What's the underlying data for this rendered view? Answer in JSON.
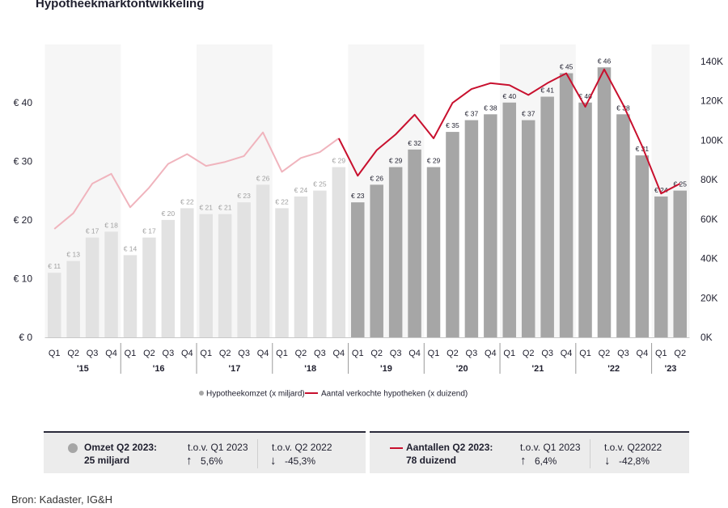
{
  "title": "Hypotheekmarktontwikkeling",
  "chart_data": {
    "type": "bar+line",
    "title": "Hypotheekmarktontwikkeling",
    "quarters": [
      "Q1",
      "Q2",
      "Q3",
      "Q4",
      "Q1",
      "Q2",
      "Q3",
      "Q4",
      "Q1",
      "Q2",
      "Q3",
      "Q4",
      "Q1",
      "Q2",
      "Q3",
      "Q4",
      "Q1",
      "Q2",
      "Q3",
      "Q4",
      "Q1",
      "Q2",
      "Q3",
      "Q4",
      "Q1",
      "Q2",
      "Q3",
      "Q4",
      "Q1",
      "Q2",
      "Q3",
      "Q4",
      "Q1",
      "Q2"
    ],
    "years": [
      {
        "label": "'15",
        "start": 0,
        "count": 4
      },
      {
        "label": "'16",
        "start": 4,
        "count": 4
      },
      {
        "label": "'17",
        "start": 8,
        "count": 4
      },
      {
        "label": "'18",
        "start": 12,
        "count": 4
      },
      {
        "label": "'19",
        "start": 16,
        "count": 4
      },
      {
        "label": "'20",
        "start": 20,
        "count": 4
      },
      {
        "label": "'21",
        "start": 24,
        "count": 4
      },
      {
        "label": "'22",
        "start": 28,
        "count": 4
      },
      {
        "label": "'23",
        "start": 32,
        "count": 2
      }
    ],
    "highlight_from_index": 16,
    "series": [
      {
        "name": "Hypotheekomzet (x miljard)",
        "type": "bar",
        "axis": "left",
        "values": [
          11,
          13,
          17,
          18,
          14,
          17,
          20,
          22,
          21,
          21,
          23,
          26,
          22,
          24,
          25,
          29,
          23,
          26,
          29,
          32,
          29,
          35,
          37,
          38,
          40,
          37,
          41,
          45,
          40,
          46,
          38,
          31,
          24,
          25
        ],
        "labels": [
          "€ 11",
          "€ 13",
          "€ 17",
          "€ 18",
          "€ 14",
          "€ 17",
          "€ 20",
          "€ 22",
          "€ 21",
          "€ 21",
          "€ 23",
          "€ 26",
          "€ 22",
          "€ 24",
          "€ 25",
          "€ 29",
          "€ 23",
          "€ 26",
          "€ 29",
          "€ 32",
          "€ 29",
          "€ 35",
          "€ 37",
          "€ 38",
          "€ 40",
          "€ 37",
          "€ 41",
          "€ 45",
          "€ 40",
          "€ 46",
          "€ 38",
          "€ 31",
          "€ 24",
          "€ 25"
        ]
      },
      {
        "name": "Aantal verkochte hypotheken (x duizend)",
        "type": "line",
        "axis": "right",
        "values": [
          55,
          63,
          78,
          83,
          66,
          76,
          88,
          93,
          87,
          89,
          92,
          104,
          84,
          91,
          94,
          101,
          82,
          95,
          103,
          113,
          101,
          119,
          126,
          129,
          128,
          123,
          129,
          134,
          117,
          136,
          118,
          97,
          73,
          78
        ]
      }
    ],
    "y_left": {
      "min": 0,
      "max": 47,
      "ticks": [
        0,
        10,
        20,
        30,
        40
      ],
      "tick_labels": [
        "€ 0",
        "€ 10",
        "€ 20",
        "€ 30",
        "€ 40"
      ]
    },
    "y_right": {
      "min": 0,
      "max": 140,
      "ticks": [
        0,
        20,
        40,
        60,
        80,
        100,
        120,
        140
      ],
      "tick_labels": [
        "0K",
        "20K",
        "40K",
        "60K",
        "80K",
        "100K",
        "120K",
        "140K"
      ]
    },
    "legend": {
      "position": "bottom",
      "items": [
        {
          "label": "Hypotheekomzet (x miljard)",
          "marker": "dot"
        },
        {
          "label": "Aantal verkochte hypotheken (x duizend)",
          "marker": "line"
        }
      ]
    }
  },
  "colors": {
    "bar_past": "#e2e2e2",
    "bar_recent": "#a6a6a6",
    "line_past": "#f0b4bd",
    "line_recent": "#c8102e",
    "band": "#f6f6f6",
    "axis_text": "#1f1f2e",
    "label_text": "#a0a0a0"
  },
  "summary": {
    "left": {
      "title_line1": "Omzet Q2 2023:",
      "title_line2": "25 miljard",
      "col1_label": "t.o.v. Q1 2023",
      "col1_value": "5,6%",
      "col1_dir": "up",
      "col2_label": "t.o.v. Q2 2022",
      "col2_value": "-45,3%",
      "col2_dir": "down"
    },
    "right": {
      "title_line1": "Aantallen Q2 2023:",
      "title_line2": "78 duizend",
      "col1_label": "t.o.v. Q1 2023",
      "col1_value": "6,4%",
      "col1_dir": "up",
      "col2_label": "t.o.v. Q22022",
      "col2_value": "-42,8%",
      "col2_dir": "down"
    }
  },
  "arrows": {
    "up": "↑",
    "down": "↓"
  },
  "source": "Bron: Kadaster, IG&H"
}
